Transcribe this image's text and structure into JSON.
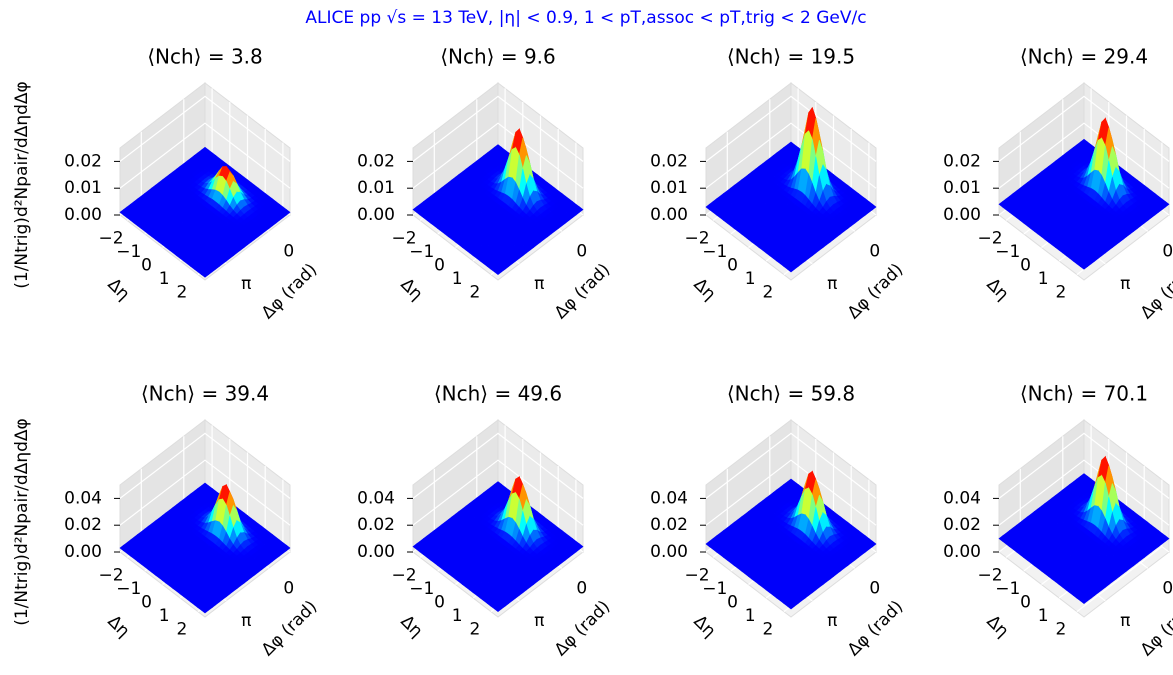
{
  "suptitle": "ALICE pp √s = 13 TeV, |η| < 0.9, 1 < pT,assoc < pT,trig < 2 GeV/c",
  "suptitle_color": "#0000ff",
  "chart_data": [
    {
      "type": "surface3d",
      "title": "⟨Nch⟩ = 3.8",
      "zlabel": "(1/Ntrig)d²Npair/dΔηdΔφ",
      "xlabel": "Δη",
      "ylabel": "Δφ (rad)",
      "xlim": [
        -2.4,
        2.4
      ],
      "xticks": [
        {
          "value": -2,
          "label": "−2"
        },
        {
          "value": -1,
          "label": "−1"
        },
        0,
        1,
        2
      ],
      "ylim": [
        -1.5708,
        4.7124
      ],
      "yticks": [
        0,
        {
          "value": 3.1416,
          "label": "π"
        }
      ],
      "zlim": [
        0,
        0.025
      ],
      "zticks": [
        {
          "value": 0,
          "label": "0.00"
        },
        {
          "value": 0.01,
          "label": "0.01"
        },
        {
          "value": 0.02,
          "label": "0.02"
        }
      ],
      "peak": 0.012,
      "baseline": 0.001
    },
    {
      "type": "surface3d",
      "title": "⟨Nch⟩ = 9.6",
      "xlabel": "Δη",
      "ylabel": "Δφ (rad)",
      "xlim": [
        -2.4,
        2.4
      ],
      "xticks": [
        {
          "value": -2,
          "label": "−2"
        },
        {
          "value": -1,
          "label": "−1"
        },
        0,
        1,
        2
      ],
      "ylim": [
        -1.5708,
        4.7124
      ],
      "yticks": [
        0,
        {
          "value": 3.1416,
          "label": "π"
        }
      ],
      "zlim": [
        0,
        0.025
      ],
      "zticks": [
        {
          "value": 0,
          "label": "0.00"
        },
        {
          "value": 0.01,
          "label": "0.01"
        },
        {
          "value": 0.02,
          "label": "0.02"
        }
      ],
      "peak": 0.026,
      "baseline": 0.002
    },
    {
      "type": "surface3d",
      "title": "⟨Nch⟩ = 19.5",
      "xlabel": "Δη",
      "ylabel": "Δφ (rad)",
      "xlim": [
        -2.4,
        2.4
      ],
      "xticks": [
        {
          "value": -2,
          "label": "−2"
        },
        {
          "value": -1,
          "label": "−1"
        },
        0,
        1,
        2
      ],
      "ylim": [
        -1.5708,
        4.7124
      ],
      "yticks": [
        0,
        {
          "value": 3.1416,
          "label": "π"
        }
      ],
      "zlim": [
        0,
        0.025
      ],
      "zticks": [
        {
          "value": 0,
          "label": "0.00"
        },
        {
          "value": 0.01,
          "label": "0.01"
        },
        {
          "value": 0.02,
          "label": "0.02"
        }
      ],
      "peak": 0.034,
      "baseline": 0.003
    },
    {
      "type": "surface3d",
      "title": "⟨Nch⟩ = 29.4",
      "xlabel": "Δη",
      "ylabel": "Δφ (rad)",
      "xlim": [
        -2.4,
        2.4
      ],
      "xticks": [
        {
          "value": -2,
          "label": "−2"
        },
        {
          "value": -1,
          "label": "−1"
        },
        0,
        1,
        2
      ],
      "ylim": [
        -1.5708,
        4.7124
      ],
      "yticks": [
        0,
        {
          "value": 3.1416,
          "label": "π"
        }
      ],
      "zlim": [
        0,
        0.025
      ],
      "zticks": [
        {
          "value": 0,
          "label": "0.00"
        },
        {
          "value": 0.01,
          "label": "0.01"
        },
        {
          "value": 0.02,
          "label": "0.02"
        }
      ],
      "peak": 0.03,
      "baseline": 0.004
    },
    {
      "type": "surface3d",
      "title": "⟨Nch⟩ = 39.4",
      "zlabel": "(1/Ntrig)d²Npair/dΔηdΔφ",
      "xlabel": "Δη",
      "ylabel": "Δφ (rad)",
      "xlim": [
        -2.4,
        2.4
      ],
      "xticks": [
        {
          "value": -2,
          "label": "−2"
        },
        {
          "value": -1,
          "label": "−1"
        },
        0,
        1,
        2
      ],
      "ylim": [
        -1.5708,
        4.7124
      ],
      "yticks": [
        0,
        {
          "value": 3.1416,
          "label": "π"
        }
      ],
      "zlim": [
        0,
        0.05
      ],
      "zticks": [
        {
          "value": 0,
          "label": "0.00"
        },
        {
          "value": 0.02,
          "label": "0.02"
        },
        {
          "value": 0.04,
          "label": "0.04"
        }
      ],
      "peak": 0.038,
      "baseline": 0.003
    },
    {
      "type": "surface3d",
      "title": "⟨Nch⟩ = 49.6",
      "xlabel": "Δη",
      "ylabel": "Δφ (rad)",
      "xlim": [
        -2.4,
        2.4
      ],
      "xticks": [
        {
          "value": -2,
          "label": "−2"
        },
        {
          "value": -1,
          "label": "−1"
        },
        0,
        1,
        2
      ],
      "ylim": [
        -1.5708,
        4.7124
      ],
      "yticks": [
        0,
        {
          "value": 3.1416,
          "label": "π"
        }
      ],
      "zlim": [
        0,
        0.05
      ],
      "zticks": [
        {
          "value": 0,
          "label": "0.00"
        },
        {
          "value": 0.02,
          "label": "0.02"
        },
        {
          "value": 0.04,
          "label": "0.04"
        }
      ],
      "peak": 0.044,
      "baseline": 0.004
    },
    {
      "type": "surface3d",
      "title": "⟨Nch⟩ = 59.8",
      "xlabel": "Δη",
      "ylabel": "Δφ (rad)",
      "xlim": [
        -2.4,
        2.4
      ],
      "xticks": [
        {
          "value": -2,
          "label": "−2"
        },
        {
          "value": -1,
          "label": "−1"
        },
        0,
        1,
        2
      ],
      "ylim": [
        -1.5708,
        4.7124
      ],
      "yticks": [
        0,
        {
          "value": 3.1416,
          "label": "π"
        }
      ],
      "zlim": [
        0,
        0.05
      ],
      "zticks": [
        {
          "value": 0,
          "label": "0.00"
        },
        {
          "value": 0.02,
          "label": "0.02"
        },
        {
          "value": 0.04,
          "label": "0.04"
        }
      ],
      "peak": 0.048,
      "baseline": 0.006
    },
    {
      "type": "surface3d",
      "title": "⟨Nch⟩ = 70.1",
      "xlabel": "Δη",
      "ylabel": "Δφ (rad)",
      "xlim": [
        -2.4,
        2.4
      ],
      "xticks": [
        {
          "value": -2,
          "label": "−2"
        },
        {
          "value": -1,
          "label": "−1"
        },
        0,
        1,
        2
      ],
      "ylim": [
        -1.5708,
        4.7124
      ],
      "yticks": [
        0,
        {
          "value": 3.1416,
          "label": "π"
        }
      ],
      "zlim": [
        0,
        0.05
      ],
      "zticks": [
        {
          "value": 0,
          "label": "0.00"
        },
        {
          "value": 0.02,
          "label": "0.02"
        },
        {
          "value": 0.04,
          "label": "0.04"
        }
      ],
      "peak": 0.059,
      "baseline": 0.01
    }
  ]
}
